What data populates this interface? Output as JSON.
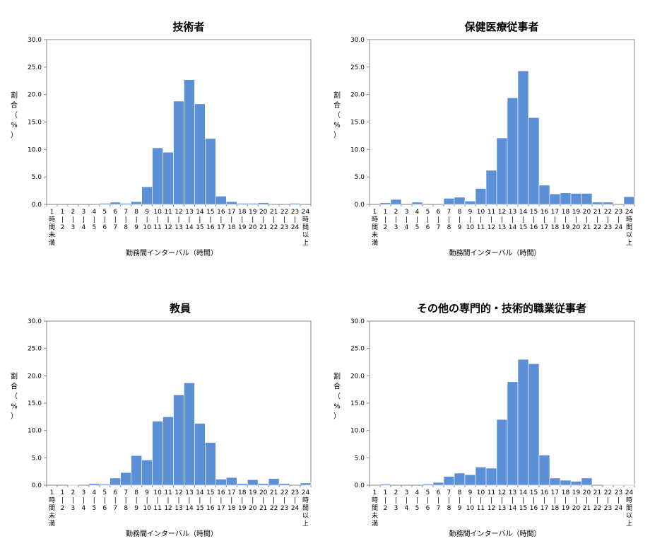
{
  "shared": {
    "xlabel": "勤務間インターバル（時間）",
    "ylabel_chars": [
      "割",
      "合",
      "（",
      "%",
      "）"
    ],
    "y_ticks": [
      "0.0",
      "5.0",
      "10.0",
      "15.0",
      "20.0",
      "25.0",
      "30.0"
    ],
    "x_tick_numbers": [
      "1",
      "1",
      "2",
      "3",
      "4",
      "5",
      "6",
      "7",
      "8",
      "9",
      "10",
      "11",
      "12",
      "13",
      "14",
      "15",
      "16",
      "17",
      "18",
      "19",
      "20",
      "21",
      "22",
      "23",
      "24"
    ],
    "x_categories": [
      "1時間未満",
      "1-2",
      "2-3",
      "3-4",
      "4-5",
      "5-6",
      "6-7",
      "7-8",
      "8-9",
      "9-10",
      "10-11",
      "11-12",
      "12-13",
      "13-14",
      "14-15",
      "15-16",
      "16-17",
      "17-18",
      "18-19",
      "19-20",
      "20-21",
      "21-22",
      "22-23",
      "23-24",
      "24時間以上"
    ],
    "first_label_lines": [
      "1",
      "時",
      "間",
      "未",
      "満"
    ],
    "last_label_lines": [
      "24",
      "時",
      "間",
      "以",
      "上"
    ],
    "bar_color": "#5b8fd6"
  },
  "chart_data": [
    {
      "type": "bar",
      "title": "技術者",
      "xlabel": "勤務間インターバル（時間）",
      "ylabel": "割合（%）",
      "ylim": [
        0,
        30
      ],
      "categories": [
        "1時間未満",
        "1-2",
        "2-3",
        "3-4",
        "4-5",
        "5-6",
        "6-7",
        "7-8",
        "8-9",
        "9-10",
        "10-11",
        "11-12",
        "12-13",
        "13-14",
        "14-15",
        "15-16",
        "16-17",
        "17-18",
        "18-19",
        "19-20",
        "20-21",
        "21-22",
        "22-23",
        "23-24",
        "24時間以上"
      ],
      "values": [
        0,
        0,
        0,
        0,
        0,
        0.2,
        0.4,
        0.2,
        0.5,
        3.2,
        10.3,
        9.5,
        18.8,
        22.7,
        18.3,
        12.0,
        1.5,
        0.5,
        0.2,
        0.2,
        0.3,
        0,
        0,
        0.2,
        0
      ]
    },
    {
      "type": "bar",
      "title": "保健医療従事者",
      "xlabel": "勤務間インターバル（時間）",
      "ylabel": "割合（%）",
      "ylim": [
        0,
        30
      ],
      "categories": [
        "1時間未満",
        "1-2",
        "2-3",
        "3-4",
        "4-5",
        "5-6",
        "6-7",
        "7-8",
        "8-9",
        "9-10",
        "10-11",
        "11-12",
        "12-13",
        "13-14",
        "14-15",
        "15-16",
        "16-17",
        "17-18",
        "18-19",
        "19-20",
        "20-21",
        "21-22",
        "22-23",
        "23-24",
        "24時間以上"
      ],
      "values": [
        0,
        0.3,
        0.9,
        0,
        0.4,
        0,
        0,
        1.1,
        1.3,
        0.6,
        2.9,
        6.2,
        12.1,
        19.4,
        24.3,
        15.8,
        3.5,
        1.9,
        2.1,
        2.0,
        2.0,
        0.4,
        0.4,
        0,
        1.4
      ]
    },
    {
      "type": "bar",
      "title": "教員",
      "xlabel": "勤務間インターバル（時間）",
      "ylabel": "割合（%）",
      "ylim": [
        0,
        30
      ],
      "categories": [
        "1時間未満",
        "1-2",
        "2-3",
        "3-4",
        "4-5",
        "5-6",
        "6-7",
        "7-8",
        "8-9",
        "9-10",
        "10-11",
        "11-12",
        "12-13",
        "13-14",
        "14-15",
        "15-16",
        "16-17",
        "17-18",
        "18-19",
        "19-20",
        "20-21",
        "21-22",
        "22-23",
        "23-24",
        "24時間以上"
      ],
      "values": [
        0,
        0,
        0.1,
        0,
        0.3,
        0.2,
        1.3,
        2.3,
        5.4,
        4.6,
        11.7,
        12.5,
        16.5,
        18.7,
        11.3,
        7.8,
        1.1,
        1.4,
        0.3,
        1.0,
        0.3,
        1.2,
        0.3,
        0,
        0.4
      ]
    },
    {
      "type": "bar",
      "title": "その他の専門的・技術的職業従事者",
      "xlabel": "勤務間インターバル（時間）",
      "ylabel": "割合（%）",
      "ylim": [
        0,
        30
      ],
      "categories": [
        "1時間未満",
        "1-2",
        "2-3",
        "3-4",
        "4-5",
        "5-6",
        "6-7",
        "7-8",
        "8-9",
        "9-10",
        "10-11",
        "11-12",
        "12-13",
        "13-14",
        "14-15",
        "15-16",
        "16-17",
        "17-18",
        "18-19",
        "19-20",
        "20-21",
        "21-22",
        "22-23",
        "23-24",
        "24時間以上"
      ],
      "values": [
        0,
        0.2,
        0,
        0,
        0,
        0.2,
        0.5,
        1.6,
        2.2,
        1.9,
        3.3,
        3.1,
        12.0,
        18.9,
        23.0,
        22.2,
        5.5,
        1.3,
        0.9,
        0.7,
        1.3,
        0,
        0.1,
        0.1,
        0.1
      ]
    }
  ]
}
